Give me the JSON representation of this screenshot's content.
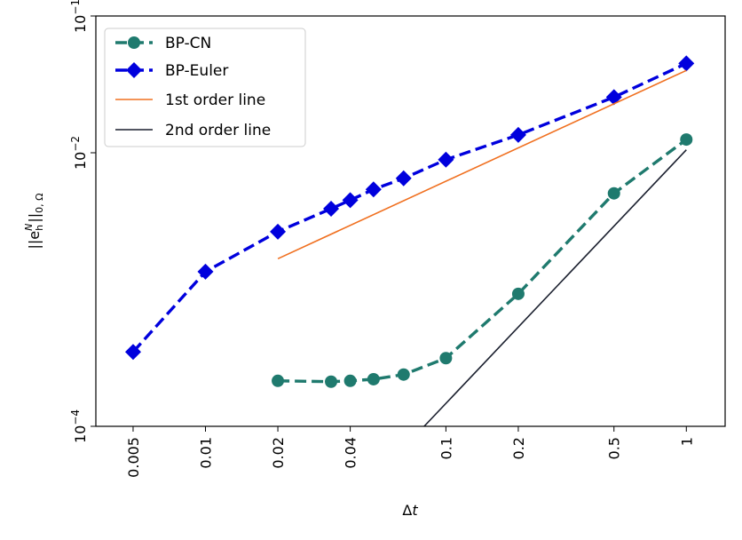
{
  "chart_data": {
    "type": "line",
    "xscale": "log",
    "yscale": "log",
    "xlabel": "Δt",
    "ylabel": "||e_h^N||_{0,Ω}",
    "xlim": [
      0.0035,
      1.45
    ],
    "ylim": [
      0.0001,
      0.1
    ],
    "grid": false,
    "legend_position": "top-left",
    "x_ticks": [
      {
        "value": 0.005,
        "label": "0.005"
      },
      {
        "value": 0.01,
        "label": "0.01"
      },
      {
        "value": 0.02,
        "label": "0.02"
      },
      {
        "value": 0.04,
        "label": "0.04"
      },
      {
        "value": 0.1,
        "label": "0.1"
      },
      {
        "value": 0.2,
        "label": "0.2"
      },
      {
        "value": 0.5,
        "label": "0.5"
      },
      {
        "value": 1,
        "label": "1"
      }
    ],
    "y_ticks": [
      {
        "value": 0.0001,
        "base": "10",
        "exp": "−4"
      },
      {
        "value": 0.01,
        "base": "10",
        "exp": "−2"
      },
      {
        "value": 0.1,
        "base": "10",
        "exp": "−1"
      }
    ],
    "series": [
      {
        "name": "BP-CN",
        "color": "#1f7a6e",
        "marker": "circle",
        "dashed": true,
        "x": [
          0.02,
          0.0333,
          0.04,
          0.05,
          0.0667,
          0.1,
          0.2,
          0.5,
          1.0
        ],
        "y": [
          0.000215,
          0.000212,
          0.000215,
          0.000221,
          0.000239,
          0.000315,
          0.00093,
          0.00505,
          0.0125
        ]
      },
      {
        "name": "BP-Euler",
        "color": "#0000dd",
        "marker": "diamond",
        "dashed": true,
        "x": [
          0.005,
          0.01,
          0.02,
          0.0333,
          0.04,
          0.05,
          0.0667,
          0.1,
          0.2,
          0.5,
          1.0
        ],
        "y": [
          0.00035,
          0.00135,
          0.00265,
          0.0039,
          0.0045,
          0.0054,
          0.0065,
          0.0089,
          0.0135,
          0.0255,
          0.045
        ]
      },
      {
        "name": "1st order line",
        "color": "#f07020",
        "marker": "none",
        "dashed": false,
        "x": [
          0.02,
          1.0
        ],
        "y": [
          0.00168,
          0.04
        ]
      },
      {
        "name": "2nd order line",
        "color": "#1a1f2e",
        "marker": "none",
        "dashed": false,
        "x": [
          0.0812,
          1.0
        ],
        "y": [
          0.0001,
          0.0105
        ]
      }
    ]
  }
}
